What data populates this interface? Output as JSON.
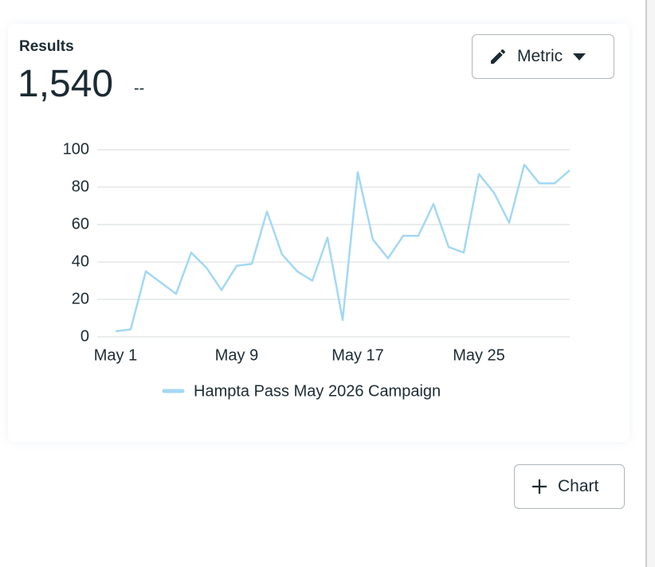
{
  "card": {
    "title": "Results",
    "value": "1,540",
    "delta": "--",
    "metric_button": "Metric"
  },
  "chart_data": {
    "type": "line",
    "categories": [
      "May 1",
      null,
      null,
      null,
      null,
      null,
      null,
      null,
      "May 9",
      null,
      null,
      null,
      null,
      null,
      null,
      null,
      "May 17",
      null,
      null,
      null,
      null,
      null,
      null,
      null,
      "May 25",
      null,
      null,
      null,
      null,
      null,
      null
    ],
    "series": [
      {
        "name": "Hampta Pass May 2026 Campaign",
        "color": "#a3d8f4",
        "values": [
          3,
          4,
          35,
          29,
          23,
          45,
          37,
          25,
          38,
          39,
          67,
          44,
          35,
          30,
          53,
          9,
          88,
          52,
          42,
          54,
          54,
          71,
          48,
          45,
          87,
          77,
          61,
          92,
          82,
          82,
          89
        ]
      }
    ],
    "ylim": [
      0,
      100
    ],
    "yticks": [
      0,
      20,
      40,
      60,
      80,
      100
    ],
    "grid": true,
    "legend": "bottom"
  },
  "add_chart_button": "Chart"
}
